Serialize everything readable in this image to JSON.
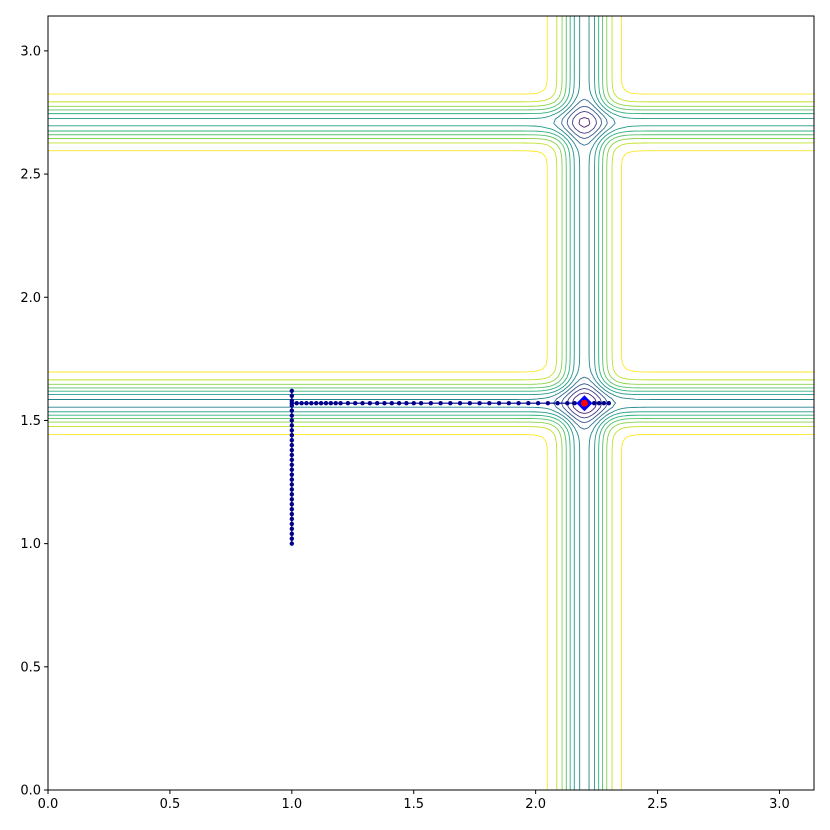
{
  "chart_data": {
    "type": "contour",
    "title": "",
    "xlabel": "",
    "ylabel": "",
    "xlim": [
      0,
      3.1416
    ],
    "ylim": [
      0,
      3.1416
    ],
    "grid": false,
    "x_ticks": [
      0.0,
      0.5,
      1.0,
      1.5,
      2.0,
      2.5,
      3.0
    ],
    "x_tick_labels": [
      "0.0",
      "0.5",
      "1.0",
      "1.5",
      "2.0",
      "2.5",
      "3.0"
    ],
    "y_ticks": [
      0.0,
      0.5,
      1.0,
      1.5,
      2.0,
      2.5,
      3.0
    ],
    "y_tick_labels": [
      "0.0",
      "0.5",
      "1.0",
      "1.5",
      "2.0",
      "2.5",
      "3.0"
    ],
    "contour": {
      "colormap": "viridis",
      "levels": 12,
      "minima": [
        [
          2.2,
          1.57
        ],
        [
          2.2,
          2.71
        ]
      ],
      "line_color_low": "#440154",
      "line_color_high": "#fde725"
    },
    "path": {
      "color": "#00008b",
      "points": [
        [
          1.0,
          1.0
        ],
        [
          1.0,
          1.02
        ],
        [
          1.0,
          1.04
        ],
        [
          1.0,
          1.06
        ],
        [
          1.0,
          1.08
        ],
        [
          1.0,
          1.1
        ],
        [
          1.0,
          1.12
        ],
        [
          1.0,
          1.14
        ],
        [
          1.0,
          1.16
        ],
        [
          1.0,
          1.18
        ],
        [
          1.0,
          1.2
        ],
        [
          1.0,
          1.22
        ],
        [
          1.0,
          1.24
        ],
        [
          1.0,
          1.26
        ],
        [
          1.0,
          1.28
        ],
        [
          1.0,
          1.3
        ],
        [
          1.0,
          1.32
        ],
        [
          1.0,
          1.34
        ],
        [
          1.0,
          1.36
        ],
        [
          1.0,
          1.38
        ],
        [
          1.0,
          1.4
        ],
        [
          1.0,
          1.42
        ],
        [
          1.0,
          1.44
        ],
        [
          1.0,
          1.46
        ],
        [
          1.0,
          1.48
        ],
        [
          1.0,
          1.5
        ],
        [
          1.0,
          1.52
        ],
        [
          1.0,
          1.54
        ],
        [
          1.0,
          1.56
        ],
        [
          1.0,
          1.58
        ],
        [
          1.0,
          1.6
        ],
        [
          1.0,
          1.62
        ],
        [
          1.0,
          1.57
        ],
        [
          1.02,
          1.57
        ],
        [
          1.04,
          1.57
        ],
        [
          1.06,
          1.57
        ],
        [
          1.08,
          1.57
        ],
        [
          1.1,
          1.57
        ],
        [
          1.12,
          1.57
        ],
        [
          1.14,
          1.57
        ],
        [
          1.16,
          1.57
        ],
        [
          1.18,
          1.57
        ],
        [
          1.2,
          1.57
        ],
        [
          1.23,
          1.57
        ],
        [
          1.26,
          1.57
        ],
        [
          1.29,
          1.57
        ],
        [
          1.32,
          1.57
        ],
        [
          1.35,
          1.57
        ],
        [
          1.38,
          1.57
        ],
        [
          1.41,
          1.57
        ],
        [
          1.44,
          1.57
        ],
        [
          1.47,
          1.57
        ],
        [
          1.5,
          1.57
        ],
        [
          1.53,
          1.57
        ],
        [
          1.57,
          1.57
        ],
        [
          1.61,
          1.57
        ],
        [
          1.65,
          1.57
        ],
        [
          1.69,
          1.57
        ],
        [
          1.73,
          1.57
        ],
        [
          1.77,
          1.57
        ],
        [
          1.81,
          1.57
        ],
        [
          1.85,
          1.57
        ],
        [
          1.89,
          1.57
        ],
        [
          1.93,
          1.57
        ],
        [
          1.97,
          1.57
        ],
        [
          2.01,
          1.57
        ],
        [
          2.05,
          1.57
        ],
        [
          2.09,
          1.57
        ],
        [
          2.13,
          1.57
        ],
        [
          2.16,
          1.57
        ],
        [
          2.18,
          1.57
        ],
        [
          2.2,
          1.57
        ],
        [
          2.22,
          1.57
        ],
        [
          2.24,
          1.57
        ],
        [
          2.26,
          1.57
        ],
        [
          2.28,
          1.57
        ],
        [
          2.3,
          1.57
        ]
      ]
    },
    "minimum_marker": {
      "x": 2.2,
      "y": 1.57,
      "outer_color": "#0000ff",
      "inner_color": "#ff0000"
    }
  }
}
